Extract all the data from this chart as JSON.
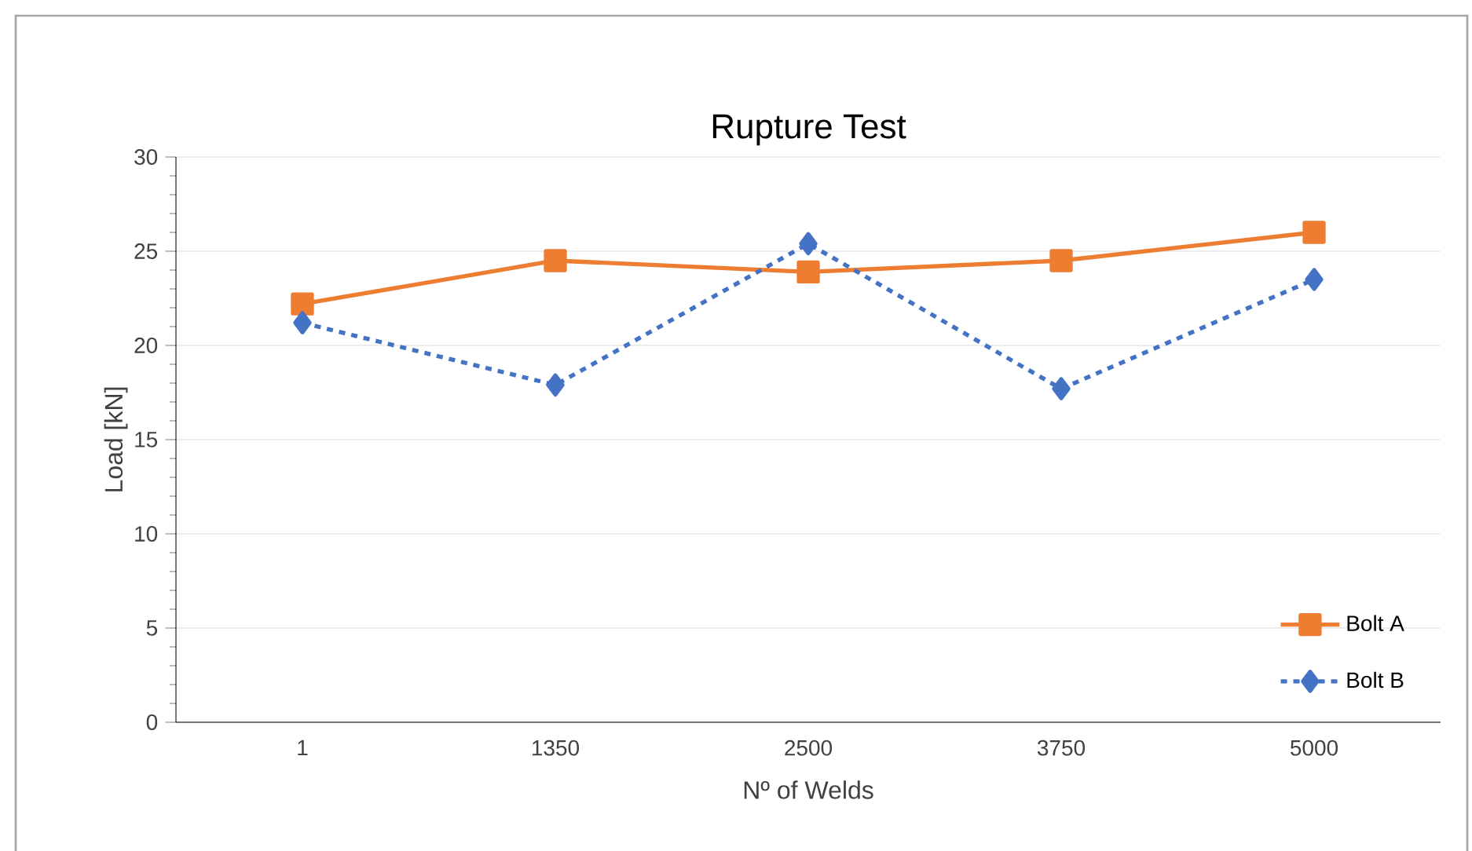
{
  "chart_data": {
    "type": "line",
    "title": "Rupture Test",
    "xlabel": "Nº of Welds",
    "ylabel": "Load [kN]",
    "categories": [
      "1",
      "1350",
      "2500",
      "3750",
      "5000"
    ],
    "series": [
      {
        "name": "Bolt A",
        "color": "#ed7d31",
        "marker": "square",
        "line_style": "solid",
        "values": [
          22.2,
          24.5,
          23.9,
          24.5,
          26.0
        ]
      },
      {
        "name": "Bolt B",
        "color": "#4472c4",
        "marker": "diamond",
        "line_style": "dashed",
        "values": [
          21.2,
          17.9,
          25.4,
          17.7,
          23.5
        ]
      }
    ],
    "ylim": [
      0,
      30
    ],
    "yticks": [
      0,
      5,
      10,
      15,
      20,
      25,
      30
    ],
    "grid": "y",
    "legend": "bottom right"
  }
}
